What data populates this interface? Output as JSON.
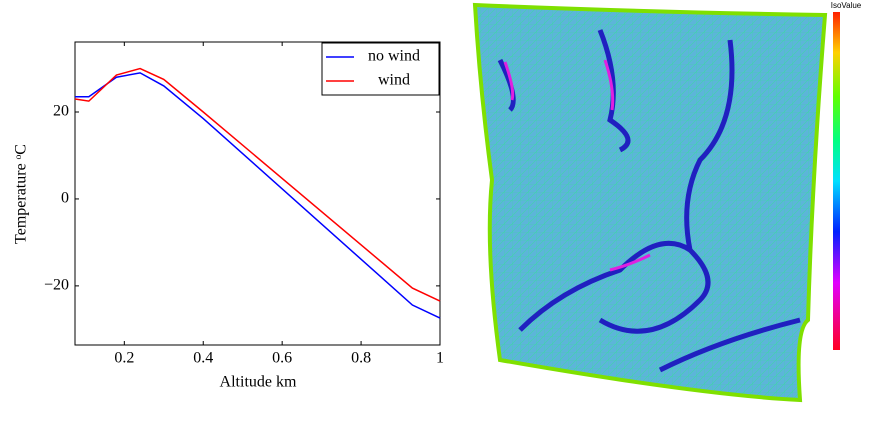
{
  "chart_data": {
    "type": "line",
    "x_label": "Altitude km",
    "y_label": "Temperature ᵒC",
    "xlim": [
      0.075,
      1
    ],
    "ylim": [
      -33.6,
      36.1
    ],
    "xticks": [
      0.2,
      0.4,
      0.6,
      0.8,
      1
    ],
    "yticks": [
      {
        "value": -20,
        "label": "−20"
      },
      0,
      20
    ],
    "legend": "upper right",
    "x": [
      0.075,
      0.11,
      0.18,
      0.24,
      0.3,
      0.4,
      0.93,
      1
    ],
    "series": [
      {
        "name": "no wind",
        "color": "#0000ff",
        "values": [
          23.5,
          23.5,
          28,
          29,
          26,
          18.5,
          -24.4,
          -27.4
        ]
      },
      {
        "name": "wind",
        "color": "#ff0000",
        "values": [
          23,
          22.5,
          28.5,
          30,
          27.5,
          20,
          -20.5,
          -23.5
        ]
      }
    ]
  },
  "image": {
    "colorbar_title": "IsoValue"
  }
}
